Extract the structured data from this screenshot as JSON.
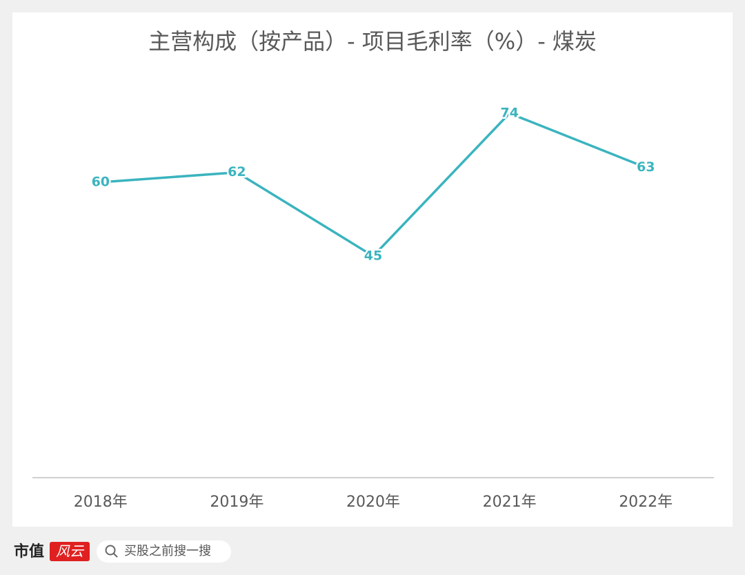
{
  "chart_data": {
    "type": "line",
    "title": "主营构成（按产品）- 项目毛利率（%）- 煤炭",
    "categories": [
      "2018年",
      "2019年",
      "2020年",
      "2021年",
      "2022年"
    ],
    "series": [
      {
        "name": "煤炭",
        "color": "#3ab4bf",
        "values": [
          60,
          62,
          45,
          74,
          63
        ]
      }
    ],
    "ylim": [
      0,
      90
    ],
    "grid": false,
    "data_labels": true
  },
  "footer": {
    "brand": "市值",
    "logo": "风云",
    "search": "买股之前搜一搜"
  }
}
